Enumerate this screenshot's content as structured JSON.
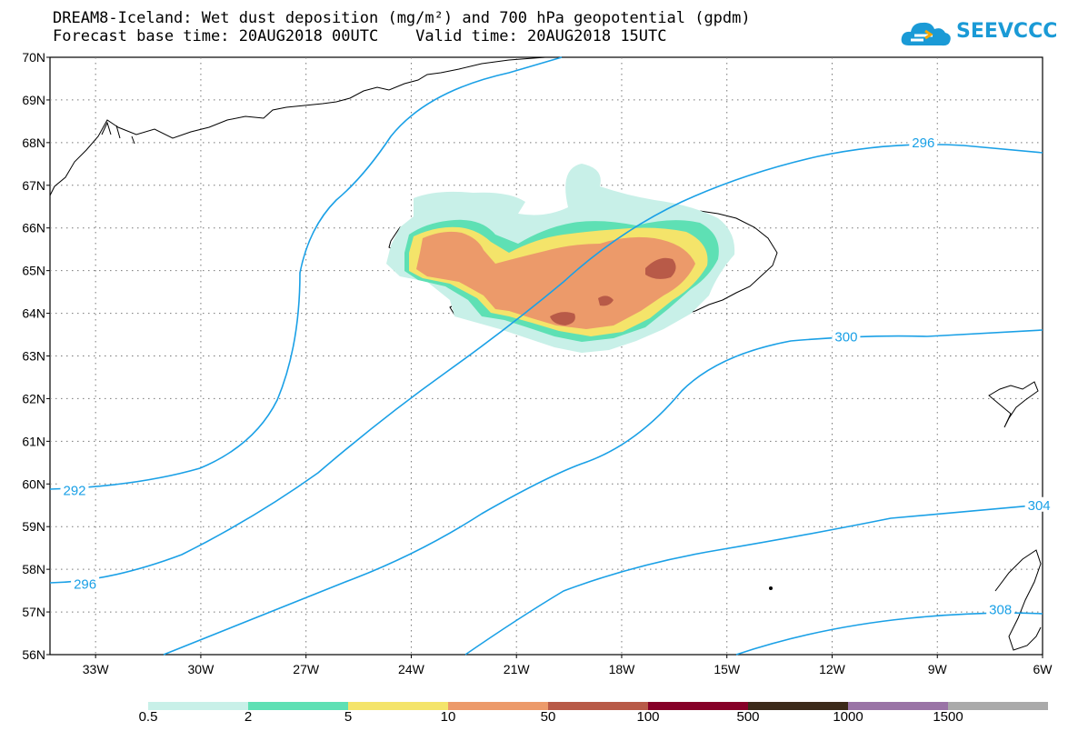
{
  "header": {
    "title": "DREAM8-Iceland: Wet dust deposition (mg/m²) and 700 hPa geopotential (gpdm)",
    "subtitle": "Forecast base time: 20AUG2018 00UTC    Valid time: 20AUG2018 15UTC"
  },
  "logo": {
    "text": "SEEVCCC",
    "color": "#1a9ad6"
  },
  "map": {
    "lat_labels": [
      "70N",
      "69N",
      "68N",
      "67N",
      "66N",
      "65N",
      "64N",
      "63N",
      "62N",
      "61N",
      "60N",
      "59N",
      "58N",
      "57N",
      "56N"
    ],
    "lon_labels": [
      "33W",
      "30W",
      "27W",
      "24W",
      "21W",
      "18W",
      "15W",
      "12W",
      "9W",
      "6W"
    ],
    "lat_range": [
      56,
      70
    ],
    "lon_range": [
      -34.3,
      -6.0
    ],
    "grid": "dotted",
    "contour_color": "#1aa0e6",
    "contour_labels": [
      {
        "text": "292",
        "lon": -33.6,
        "lat": 59.85
      },
      {
        "text": "296",
        "lon": -33.3,
        "lat": 57.65
      },
      {
        "text": "296",
        "lon": -9.4,
        "lat": 68.0
      },
      {
        "text": "300",
        "lon": -11.6,
        "lat": 63.45
      },
      {
        "text": "304",
        "lon": -6.1,
        "lat": 59.5
      },
      {
        "text": "308",
        "lon": -7.2,
        "lat": 57.05
      }
    ]
  },
  "legend": {
    "labels": [
      "0.5",
      "2",
      "5",
      "10",
      "50",
      "100",
      "500",
      "1000",
      "1500"
    ],
    "colors": [
      "#c8f0e8",
      "#5ee0b4",
      "#f4e46a",
      "#ec9a6a",
      "#b85a48",
      "#860028",
      "#3c2a1a",
      "#9a74a6",
      "#aaaaaa"
    ]
  }
}
